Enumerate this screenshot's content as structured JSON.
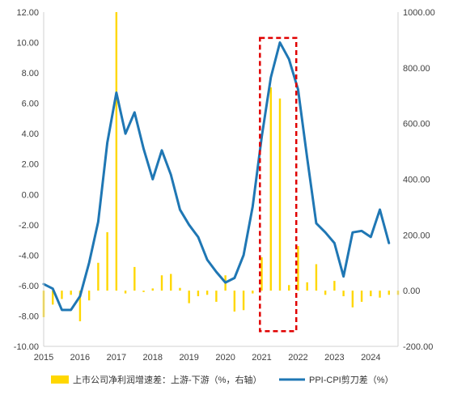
{
  "chart_data": {
    "type": "bar+line",
    "left_axis": {
      "ylim": [
        -10,
        12
      ],
      "ticks": [
        "12.00",
        "10.00",
        "8.00",
        "6.00",
        "4.00",
        "2.00",
        "0.00",
        "-2.00",
        "-4.00",
        "-6.00",
        "-8.00",
        "-10.00"
      ],
      "tick_values": [
        12,
        10,
        8,
        6,
        4,
        2,
        0,
        -2,
        -4,
        -6,
        -8,
        -10
      ]
    },
    "right_axis": {
      "ylim": [
        -200,
        1000
      ],
      "ticks": [
        "1000.00",
        "800.00",
        "600.00",
        "400.00",
        "200.00",
        "0.00",
        "-200.00"
      ],
      "tick_values": [
        1000,
        800,
        600,
        400,
        200,
        0,
        -200
      ]
    },
    "x_axis": {
      "xlim": [
        2015,
        2024.75
      ],
      "ticks": [
        "2015",
        "2016",
        "2017",
        "2018",
        "2019",
        "2020",
        "2021",
        "2022",
        "2023",
        "2024"
      ],
      "tick_values": [
        2015,
        2016,
        2017,
        2018,
        2019,
        2020,
        2021,
        2022,
        2023,
        2024
      ]
    },
    "series": [
      {
        "name": "上市公司净利润增速差：上游-下游（%，右轴）",
        "type": "bar",
        "axis": "right",
        "color": "#FFD700",
        "points": [
          [
            2015.0,
            -95
          ],
          [
            2015.25,
            -50
          ],
          [
            2015.5,
            -30
          ],
          [
            2015.75,
            -15
          ],
          [
            2016.0,
            -110
          ],
          [
            2016.25,
            -35
          ],
          [
            2016.5,
            100
          ],
          [
            2016.75,
            210
          ],
          [
            2017.0,
            1000
          ],
          [
            2017.25,
            -10
          ],
          [
            2017.5,
            85
          ],
          [
            2017.75,
            -5
          ],
          [
            2018.0,
            8
          ],
          [
            2018.25,
            55
          ],
          [
            2018.5,
            60
          ],
          [
            2018.75,
            10
          ],
          [
            2019.0,
            -45
          ],
          [
            2019.25,
            -20
          ],
          [
            2019.5,
            -15
          ],
          [
            2019.75,
            -40
          ],
          [
            2020.0,
            55
          ],
          [
            2020.25,
            -75
          ],
          [
            2020.5,
            -70
          ],
          [
            2020.75,
            -10
          ],
          [
            2021.0,
            120
          ],
          [
            2021.25,
            730
          ],
          [
            2021.5,
            690
          ],
          [
            2021.75,
            20
          ],
          [
            2022.0,
            160
          ],
          [
            2022.25,
            30
          ],
          [
            2022.5,
            95
          ],
          [
            2022.75,
            -15
          ],
          [
            2023.0,
            35
          ],
          [
            2023.25,
            -20
          ],
          [
            2023.5,
            -60
          ],
          [
            2023.75,
            -40
          ],
          [
            2024.0,
            -20
          ],
          [
            2024.25,
            -25
          ],
          [
            2024.5,
            -15
          ],
          [
            2024.75,
            -15
          ]
        ]
      },
      {
        "name": "PPI-CPI剪刀差（%）",
        "type": "line",
        "axis": "left",
        "color": "#1F77B4",
        "points": [
          [
            2015.0,
            -5.9
          ],
          [
            2015.25,
            -6.2
          ],
          [
            2015.5,
            -7.6
          ],
          [
            2015.75,
            -7.6
          ],
          [
            2016.0,
            -6.7
          ],
          [
            2016.25,
            -4.5
          ],
          [
            2016.5,
            -1.8
          ],
          [
            2016.75,
            3.4
          ],
          [
            2017.0,
            6.7
          ],
          [
            2017.25,
            4.0
          ],
          [
            2017.5,
            5.4
          ],
          [
            2017.75,
            3.0
          ],
          [
            2018.0,
            1.0
          ],
          [
            2018.25,
            2.9
          ],
          [
            2018.5,
            1.3
          ],
          [
            2018.75,
            -1.0
          ],
          [
            2019.0,
            -2.0
          ],
          [
            2019.25,
            -2.8
          ],
          [
            2019.5,
            -4.3
          ],
          [
            2019.75,
            -5.1
          ],
          [
            2020.0,
            -5.8
          ],
          [
            2020.25,
            -5.5
          ],
          [
            2020.5,
            -4.0
          ],
          [
            2020.75,
            -0.8
          ],
          [
            2021.0,
            3.8
          ],
          [
            2021.25,
            7.7
          ],
          [
            2021.5,
            10.0
          ],
          [
            2021.75,
            8.9
          ],
          [
            2022.0,
            6.9
          ],
          [
            2022.25,
            2.4
          ],
          [
            2022.5,
            -1.9
          ],
          [
            2022.75,
            -2.5
          ],
          [
            2023.0,
            -3.2
          ],
          [
            2023.25,
            -5.4
          ],
          [
            2023.5,
            -2.5
          ],
          [
            2023.75,
            -2.4
          ],
          [
            2024.0,
            -2.8
          ],
          [
            2024.25,
            -1.0
          ],
          [
            2024.5,
            -3.2
          ]
        ]
      }
    ],
    "highlight": {
      "style": "red dashed rectangle",
      "x_range": [
        2020.95,
        2021.95
      ],
      "left_y_range": [
        -9.0,
        10.3
      ]
    },
    "legend_position": "bottom",
    "grid": false
  }
}
